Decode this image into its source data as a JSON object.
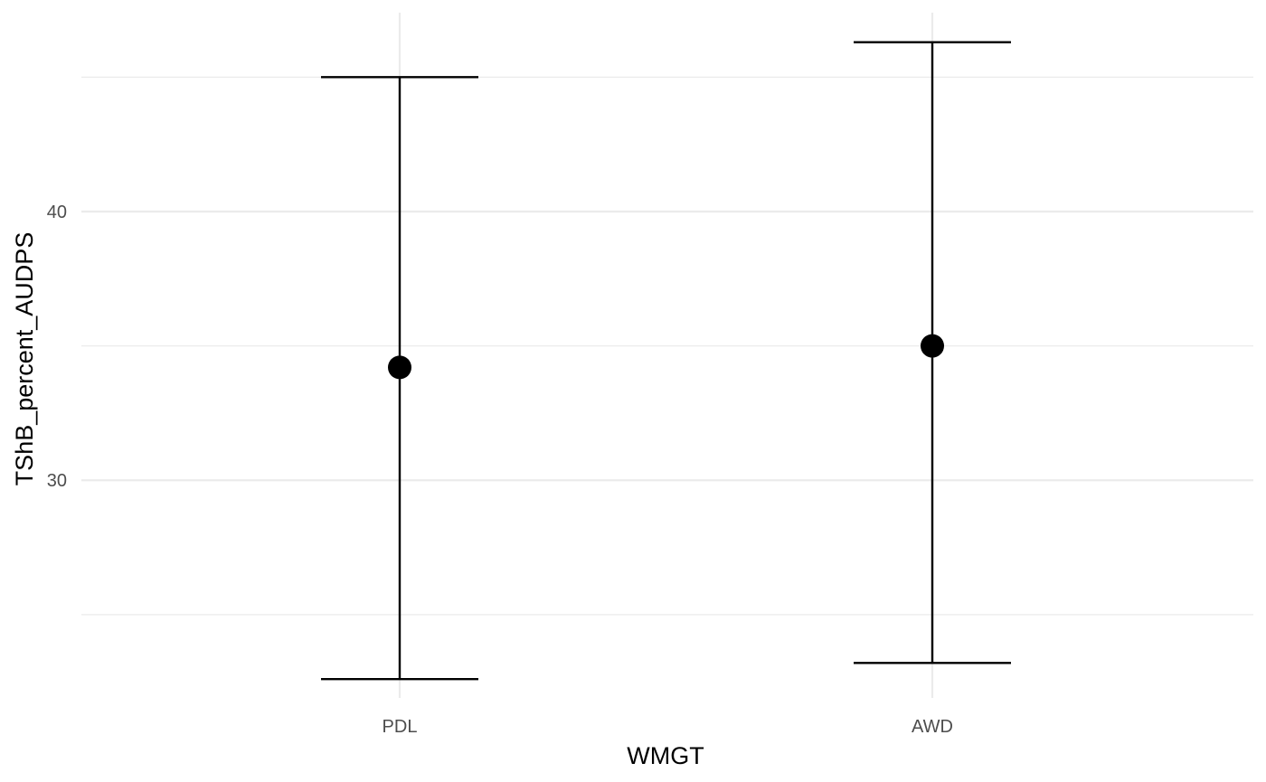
{
  "chart_data": {
    "type": "scatter",
    "title": "",
    "xlabel": "WMGT",
    "ylabel": "TShB_percent_AUDPS",
    "categories": [
      "PDL",
      "AWD"
    ],
    "series": [
      {
        "points": [
          {
            "category": "PDL",
            "y": 34.2,
            "lower": 22.6,
            "upper": 45.0
          },
          {
            "category": "AWD",
            "y": 35.0,
            "lower": 23.2,
            "upper": 46.3
          }
        ]
      }
    ],
    "y_ticks": [
      30,
      40
    ],
    "y_tick_labels": [
      "30",
      "40"
    ],
    "ylim": [
      21.9,
      47.4
    ],
    "grid": true,
    "legend": "none",
    "colors": {
      "marker": "#000000",
      "errorbar": "#000000",
      "grid": "#ebebeb",
      "tick_text": "#4d4d4d",
      "axis_title": "#000000"
    }
  }
}
